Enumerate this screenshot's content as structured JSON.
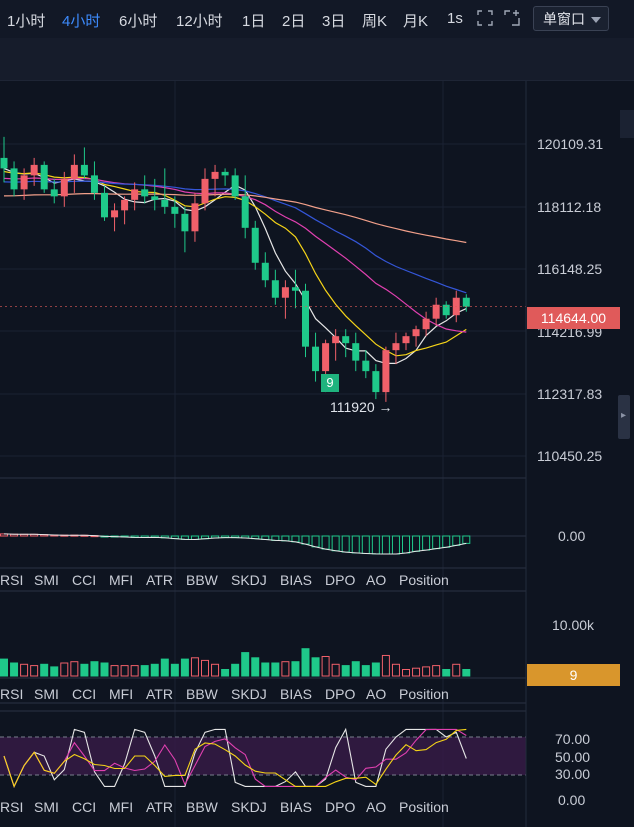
{
  "toolbar": {
    "timeframes": [
      {
        "label": "1小时",
        "active": false
      },
      {
        "label": "4小时",
        "active": true
      },
      {
        "label": "6小时",
        "active": false
      },
      {
        "label": "12小时",
        "active": false
      },
      {
        "label": "1日",
        "active": false
      },
      {
        "label": "2日",
        "active": false
      },
      {
        "label": "3日",
        "active": false
      },
      {
        "label": "周K",
        "active": false
      },
      {
        "label": "月K",
        "active": false
      },
      {
        "label": "1s",
        "active": false
      }
    ],
    "window_mode": "单窗口",
    "icons": [
      "fullscreen-icon",
      "add-window-icon",
      "chevron-down-icon"
    ]
  },
  "price_axis": [
    "120109.31",
    "118112.18",
    "116148.25",
    "114216.99",
    "112317.83",
    "110450.25"
  ],
  "last_price": "114644.00",
  "low_marker": {
    "label": "111920",
    "arrow": "→"
  },
  "td_marker": "9",
  "macd_axis": [
    "0.00"
  ],
  "volume_axis": [
    "10.00k"
  ],
  "volume_tag": "9",
  "rsi_axis": [
    "70.00",
    "50.00",
    "30.00",
    "0.00"
  ],
  "indicator_tabs": [
    "RSI",
    "SMI",
    "CCI",
    "MFI",
    "ATR",
    "BBW",
    "SKDJ",
    "BIAS",
    "DPO",
    "AO",
    "Position"
  ],
  "colors": {
    "up": "#f0606a",
    "down": "#1fc98a",
    "ma_yellow": "#f5d418",
    "ma_pink": "#e040b0",
    "ma_blue": "#3456d8",
    "ma_peach": "#f2a08a",
    "ma_white": "#e6e6e6"
  },
  "chart_data": {
    "type": "candlestick",
    "candles": [
      [
        118900,
        119500,
        118200,
        118600
      ],
      [
        118600,
        118800,
        117800,
        118000
      ],
      [
        118000,
        118600,
        117700,
        118400
      ],
      [
        118400,
        118900,
        118100,
        118700
      ],
      [
        118700,
        118800,
        117900,
        118000
      ],
      [
        118000,
        118300,
        117600,
        117800
      ],
      [
        117800,
        118500,
        117500,
        118300
      ],
      [
        118300,
        119000,
        117900,
        118700
      ],
      [
        118700,
        119200,
        118300,
        118400
      ],
      [
        118400,
        118800,
        117700,
        117900
      ],
      [
        117900,
        118100,
        117100,
        117200
      ],
      [
        117200,
        117600,
        116800,
        117400
      ],
      [
        117400,
        117800,
        117000,
        117700
      ],
      [
        117700,
        118200,
        117400,
        118000
      ],
      [
        118000,
        118400,
        117600,
        117800
      ],
      [
        117800,
        118300,
        117400,
        117700
      ],
      [
        117700,
        118600,
        117300,
        117500
      ],
      [
        117500,
        117800,
        116900,
        117300
      ],
      [
        117300,
        117500,
        116200,
        116800
      ],
      [
        116800,
        117900,
        116500,
        117600
      ],
      [
        117600,
        118600,
        117400,
        118300
      ],
      [
        118300,
        118700,
        117800,
        118500
      ],
      [
        118500,
        118600,
        118100,
        118400
      ],
      [
        118400,
        118600,
        117700,
        117800
      ],
      [
        117800,
        118400,
        116600,
        116900
      ],
      [
        116900,
        117100,
        115700,
        115900
      ],
      [
        115900,
        116200,
        115200,
        115400
      ],
      [
        115400,
        115700,
        114700,
        114900
      ],
      [
        114900,
        115400,
        114300,
        115200
      ],
      [
        115200,
        115700,
        114600,
        115100
      ],
      [
        115100,
        115300,
        113200,
        113500
      ],
      [
        113500,
        113900,
        112500,
        112800
      ],
      [
        112800,
        113700,
        112200,
        113600
      ],
      [
        113600,
        114000,
        113100,
        113800
      ],
      [
        113800,
        114000,
        113200,
        113600
      ],
      [
        113600,
        113900,
        112800,
        113100
      ],
      [
        113100,
        113400,
        112600,
        112800
      ],
      [
        112800,
        113000,
        112000,
        112200
      ],
      [
        112200,
        113500,
        111920,
        113400
      ],
      [
        113400,
        113900,
        113000,
        113600
      ],
      [
        113600,
        113900,
        113400,
        113800
      ],
      [
        113800,
        114100,
        113500,
        114000
      ],
      [
        114000,
        114500,
        113800,
        114300
      ],
      [
        114300,
        114900,
        114100,
        114700
      ],
      [
        114700,
        114800,
        114300,
        114400
      ],
      [
        114400,
        115100,
        114200,
        114900
      ],
      [
        114900,
        115000,
        114500,
        114644
      ]
    ],
    "price_range": [
      109800,
      121100
    ]
  }
}
